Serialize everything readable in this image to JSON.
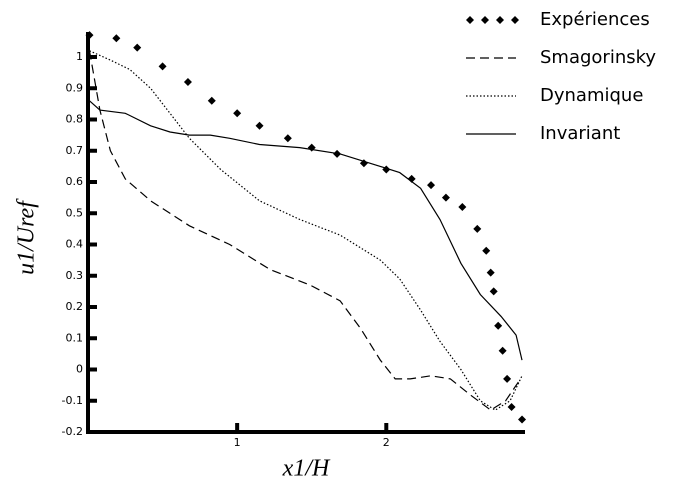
{
  "chart_data": {
    "type": "line",
    "xlabel": "x1/H",
    "ylabel": "u1/Uref",
    "xlim": [
      0,
      2.93
    ],
    "ylim": [
      -0.2,
      1.08
    ],
    "xticks": [
      1,
      2
    ],
    "yticks": [
      -0.2,
      -0.1,
      0,
      0.1,
      0.2,
      0.3,
      0.4,
      0.5,
      0.6,
      0.7,
      0.8,
      0.9,
      1
    ],
    "legend": "upper right",
    "series": [
      {
        "name": "Expériences",
        "color": "#000000",
        "style": "marker",
        "x": [
          0.01,
          0.19,
          0.33,
          0.5,
          0.67,
          0.83,
          1.0,
          1.15,
          1.34,
          1.5,
          1.67,
          1.85,
          2.0,
          2.17,
          2.3,
          2.4,
          2.51,
          2.61,
          2.67,
          2.7,
          2.72,
          2.75,
          2.78,
          2.81,
          2.84,
          2.91
        ],
        "values": [
          1.07,
          1.06,
          1.03,
          0.97,
          0.92,
          0.86,
          0.82,
          0.78,
          0.74,
          0.71,
          0.69,
          0.66,
          0.64,
          0.61,
          0.59,
          0.55,
          0.52,
          0.45,
          0.38,
          0.31,
          0.25,
          0.14,
          0.06,
          -0.03,
          -0.12,
          -0.16
        ]
      },
      {
        "name": "Smagorinsky",
        "color": "#000000",
        "style": "dashed",
        "x": [
          0.01,
          0.08,
          0.15,
          0.25,
          0.42,
          0.68,
          0.95,
          1.22,
          1.49,
          1.69,
          1.83,
          1.96,
          2.06,
          2.16,
          2.3,
          2.43,
          2.56,
          2.7,
          2.8,
          2.9
        ],
        "values": [
          1.02,
          0.83,
          0.7,
          0.61,
          0.54,
          0.46,
          0.4,
          0.32,
          0.27,
          0.22,
          0.13,
          0.03,
          -0.03,
          -0.03,
          -0.02,
          -0.03,
          -0.08,
          -0.13,
          -0.1,
          -0.03
        ]
      },
      {
        "name": "Dynamique",
        "color": "#000000",
        "style": "dotted",
        "x": [
          0.01,
          0.15,
          0.28,
          0.42,
          0.55,
          0.68,
          0.89,
          1.15,
          1.42,
          1.69,
          1.96,
          2.09,
          2.23,
          2.36,
          2.5,
          2.63,
          2.73,
          2.83,
          2.91
        ],
        "values": [
          1.02,
          0.99,
          0.96,
          0.9,
          0.82,
          0.74,
          0.64,
          0.54,
          0.48,
          0.43,
          0.35,
          0.29,
          0.19,
          0.09,
          0.0,
          -0.1,
          -0.13,
          -0.1,
          -0.02
        ]
      },
      {
        "name": "Invariant",
        "color": "#000000",
        "style": "solid",
        "x": [
          0.01,
          0.08,
          0.25,
          0.42,
          0.55,
          0.68,
          0.82,
          0.95,
          1.15,
          1.42,
          1.69,
          1.96,
          2.09,
          2.23,
          2.36,
          2.5,
          2.63,
          2.77,
          2.87,
          2.91
        ],
        "values": [
          0.86,
          0.83,
          0.82,
          0.78,
          0.76,
          0.75,
          0.75,
          0.74,
          0.72,
          0.71,
          0.69,
          0.65,
          0.63,
          0.58,
          0.48,
          0.34,
          0.24,
          0.17,
          0.11,
          0.03
        ]
      }
    ]
  }
}
